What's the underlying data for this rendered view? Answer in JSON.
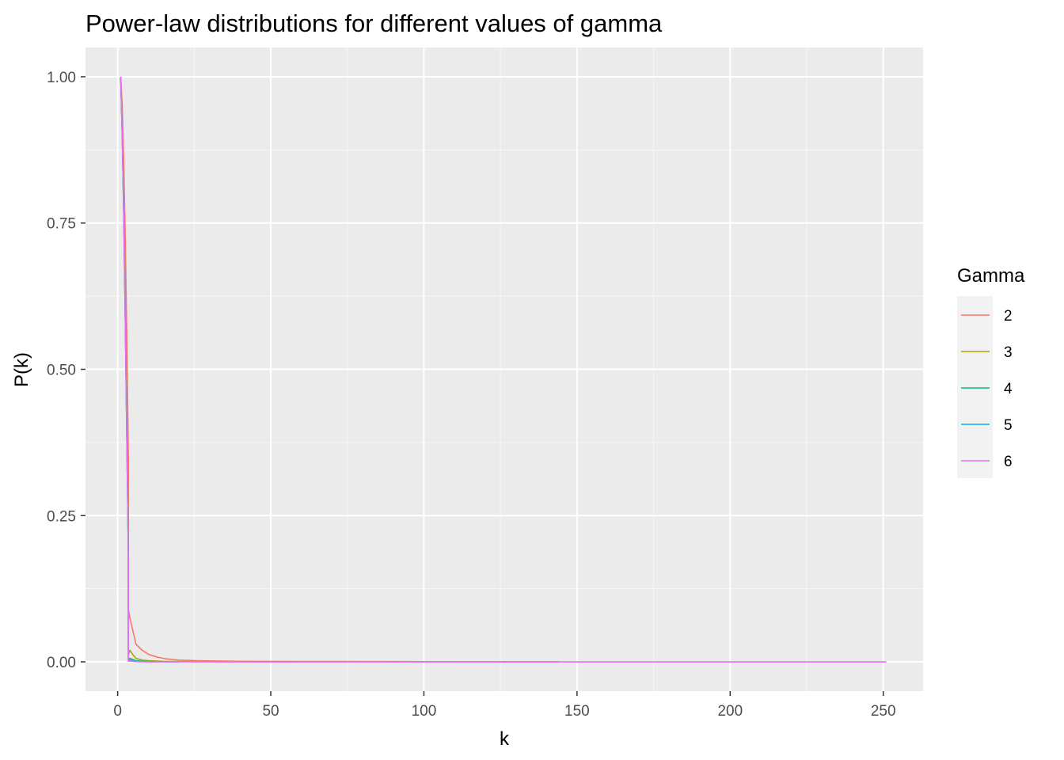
{
  "chart_data": {
    "type": "line",
    "title": "Power-law distributions for different values of gamma",
    "xlabel": "k",
    "ylabel": "P(k)",
    "xlim": [
      -10.5,
      263
    ],
    "ylim": [
      -0.05,
      1.05
    ],
    "x_ticks": [
      0,
      50,
      100,
      150,
      200,
      250
    ],
    "x_tick_labels": [
      "0",
      "50",
      "100",
      "150",
      "200",
      "250"
    ],
    "y_ticks": [
      0,
      0.25,
      0.5,
      0.75,
      1
    ],
    "y_tick_labels": [
      "0.00",
      "0.25",
      "0.50",
      "0.75",
      "1.00"
    ],
    "grid": true,
    "legend": {
      "title": "Gamma",
      "position": "right"
    },
    "series": [
      {
        "name": "2",
        "color": "#F8766D",
        "x": [
          1,
          1.5,
          2,
          2.5,
          3,
          3.5,
          3.5,
          4,
          6,
          8,
          10,
          13,
          16,
          20,
          26,
          40,
          70,
          100,
          144
        ],
        "y": [
          1,
          0.95,
          0.85,
          0.72,
          0.55,
          0.35,
          0.09,
          0.075,
          0.03,
          0.02,
          0.013,
          0.008,
          0.005,
          0.003,
          0.002,
          0.001,
          0.0006,
          0.0004,
          0.0003
        ]
      },
      {
        "name": "3",
        "color": "#A3A500",
        "x": [
          1,
          1.5,
          2,
          2.5,
          3,
          3.5,
          3.5,
          4,
          5,
          6,
          8,
          10,
          15,
          26,
          60
        ],
        "y": [
          1,
          0.9,
          0.78,
          0.6,
          0.4,
          0.2,
          0.012,
          0.02,
          0.012,
          0.006,
          0.003,
          0.002,
          0.0008,
          0.0003,
          0.0001
        ]
      },
      {
        "name": "4",
        "color": "#00BF7D",
        "x": [
          1,
          1.5,
          2,
          2.5,
          3,
          3.5,
          3.5,
          4,
          5,
          6,
          8,
          12,
          20
        ],
        "y": [
          1,
          0.9,
          0.76,
          0.58,
          0.38,
          0.18,
          0.004,
          0.006,
          0.004,
          0.002,
          0.001,
          0.0003,
          0.0001
        ]
      },
      {
        "name": "5",
        "color": "#00B0F6",
        "x": [
          1,
          1.5,
          2,
          2.5,
          3,
          3.5,
          3.5,
          4,
          5,
          6,
          8,
          12
        ],
        "y": [
          1,
          0.9,
          0.76,
          0.58,
          0.38,
          0.18,
          0.002,
          0.003,
          0.002,
          0.001,
          0.0004,
          0.0001
        ]
      },
      {
        "name": "6",
        "color": "#E76BF3",
        "x": [
          1,
          1.5,
          2,
          2.5,
          3,
          3.5,
          3.5,
          4,
          5,
          6,
          8,
          10,
          50,
          100,
          150,
          200,
          251
        ],
        "y": [
          1,
          0.9,
          0.76,
          0.58,
          0.38,
          0.18,
          0.001,
          0.0015,
          0.001,
          0.0005,
          0.0002,
          0.0001,
          0,
          0,
          0,
          0,
          0
        ]
      }
    ]
  }
}
